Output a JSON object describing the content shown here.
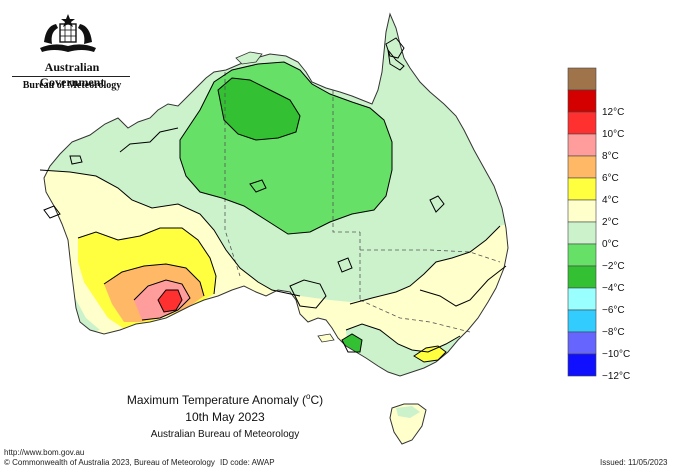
{
  "branding": {
    "government": "Australian Government",
    "bureau": "Bureau of Meteorology"
  },
  "map": {
    "title": "Maximum Temperature Anomaly (°C)",
    "title_prefix": "Maximum Temperature Anomaly (",
    "title_unit_sup": "o",
    "title_suffix": "C)",
    "date": "10th May 2023",
    "source": "Australian Bureau of Meteorology"
  },
  "legend": {
    "items": [
      {
        "label": "",
        "color": "#a0744a"
      },
      {
        "label": "12°C",
        "color": "#d40000"
      },
      {
        "label": "10°C",
        "color": "#ff3030"
      },
      {
        "label": "8°C",
        "color": "#ff9c9c"
      },
      {
        "label": "6°C",
        "color": "#ffb866"
      },
      {
        "label": "4°C",
        "color": "#ffff40"
      },
      {
        "label": "2°C",
        "color": "#ffffcc"
      },
      {
        "label": "0°C",
        "color": "#ccf2cc"
      },
      {
        "label": "−2°C",
        "color": "#66e066"
      },
      {
        "label": "−4°C",
        "color": "#33c033"
      },
      {
        "label": "−6°C",
        "color": "#99ffff"
      },
      {
        "label": "−8°C",
        "color": "#33ccff"
      },
      {
        "label": "−10°C",
        "color": "#6666ff"
      },
      {
        "label": "−12°C",
        "color": "#1010ff"
      }
    ]
  },
  "footer": {
    "url": "http://www.bom.gov.au",
    "copyright": "© Commonwealth of Australia 2023, Bureau of Meteorology",
    "id_code": "ID code: AWAP",
    "issued": "Issued: 11/05/2023"
  }
}
